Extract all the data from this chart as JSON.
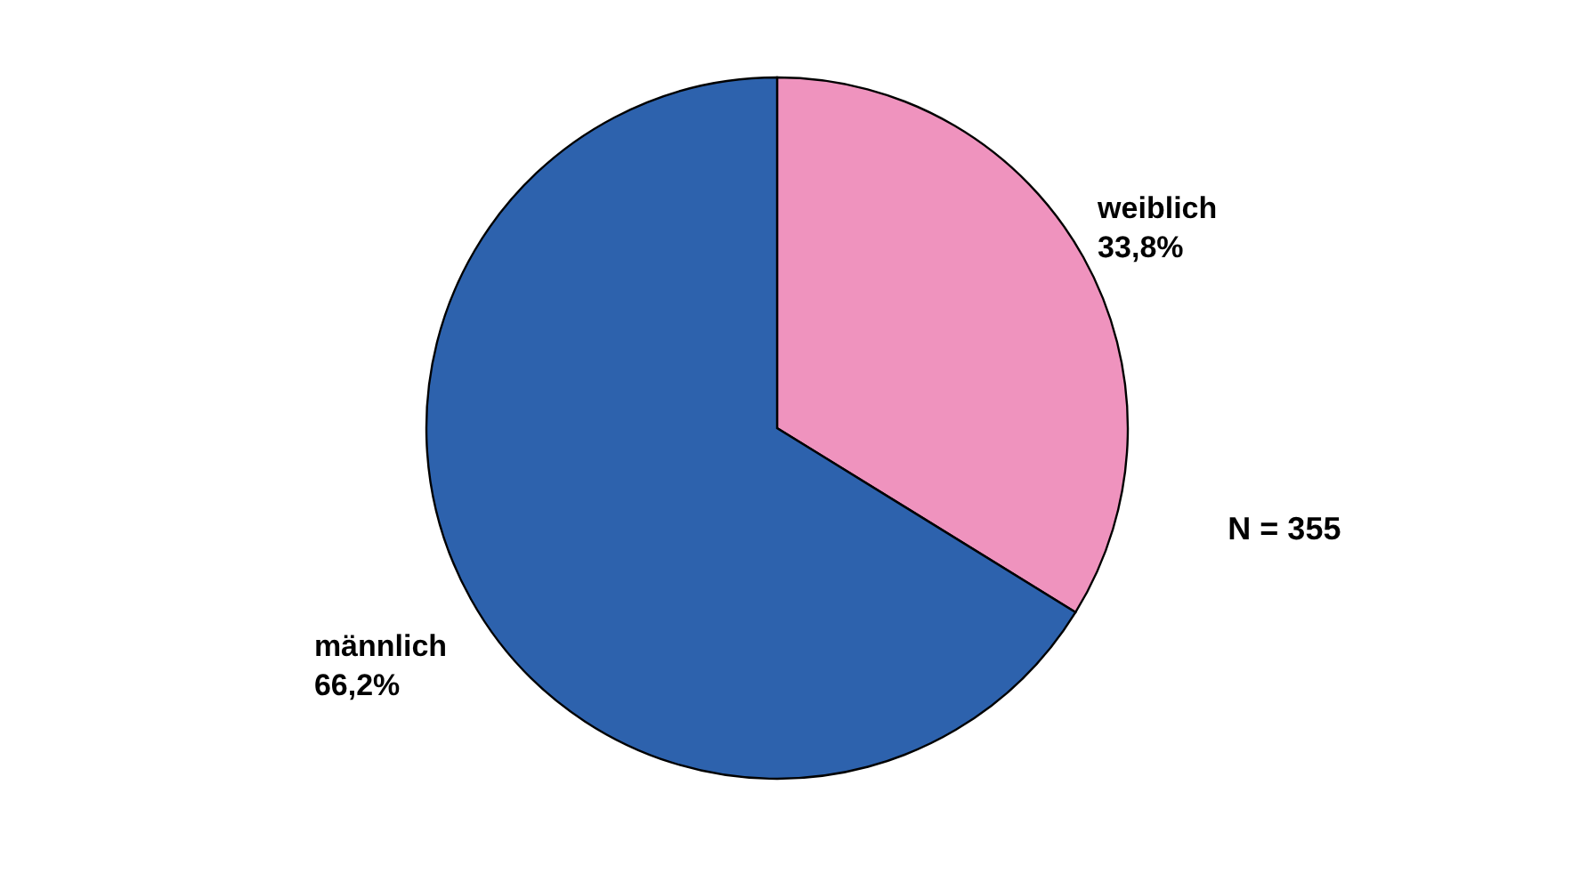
{
  "chart_data": {
    "type": "pie",
    "categories": [
      "weiblich",
      "männlich"
    ],
    "values": [
      33.8,
      66.2
    ],
    "colors": [
      "#ef93be",
      "#2d62ad"
    ],
    "value_labels": [
      "33,8%",
      "66,2%"
    ],
    "annotations": [
      "N = 355"
    ],
    "legend": false
  }
}
